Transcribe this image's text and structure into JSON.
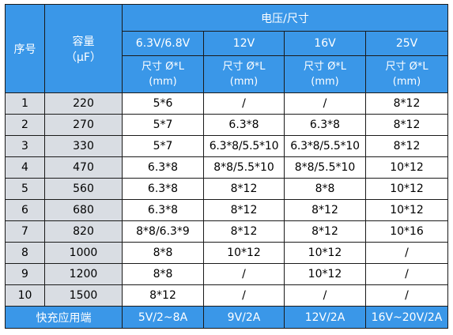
{
  "header": {
    "col_index": "序号",
    "col_capacity": "容量",
    "col_capacity_unit": "（μF）",
    "group_title": "电压/尺寸",
    "voltages": [
      "6.3V/6.8V",
      "12V",
      "16V",
      "25V"
    ],
    "size_label": "尺寸 Ø*L",
    "size_unit": "(mm)"
  },
  "rows": [
    {
      "idx": "1",
      "cap": "220",
      "v1": "5*6",
      "v2": "/",
      "v3": "/",
      "v4": "8*12"
    },
    {
      "idx": "2",
      "cap": "270",
      "v1": "5*7",
      "v2": "6.3*8",
      "v3": "6.3*8",
      "v4": "8*12"
    },
    {
      "idx": "3",
      "cap": "330",
      "v1": "5*7",
      "v2": "6.3*8/5.5*10",
      "v3": "6.3*8/5.5*10",
      "v4": "8*12"
    },
    {
      "idx": "4",
      "cap": "470",
      "v1": "6.3*8",
      "v2": "8*8/5.5*10",
      "v3": "8*8/5.5*10",
      "v4": "10*12"
    },
    {
      "idx": "5",
      "cap": "560",
      "v1": "6.3*8",
      "v2": "8*12",
      "v3": "8*8",
      "v4": "10*12"
    },
    {
      "idx": "6",
      "cap": "680",
      "v1": "6.3*8",
      "v2": "8*12",
      "v3": "8*12",
      "v4": "10*12"
    },
    {
      "idx": "7",
      "cap": "820",
      "v1": "8*8/6.3*9",
      "v2": "8*12",
      "v3": "8*12",
      "v4": "10*16"
    },
    {
      "idx": "8",
      "cap": "1000",
      "v1": "8*8",
      "v2": "10*12",
      "v3": "10*12",
      "v4": "/"
    },
    {
      "idx": "9",
      "cap": "1200",
      "v1": "8*8",
      "v2": "/",
      "v3": "10*12",
      "v4": "/"
    },
    {
      "idx": "10",
      "cap": "1500",
      "v1": "8*12",
      "v2": "/",
      "v3": "/",
      "v4": "/"
    }
  ],
  "footer": {
    "label": "快充应用端",
    "values": [
      "5V/2~8A",
      "9V/2A",
      "12V/2A",
      "16V~20V/2A"
    ]
  },
  "colors": {
    "header_bg": "#3a97e8",
    "header_text": "#ffffff",
    "index_col_bg": "#d9dde3",
    "cell_bg": "#ffffff",
    "border": "#1a1a1a"
  }
}
